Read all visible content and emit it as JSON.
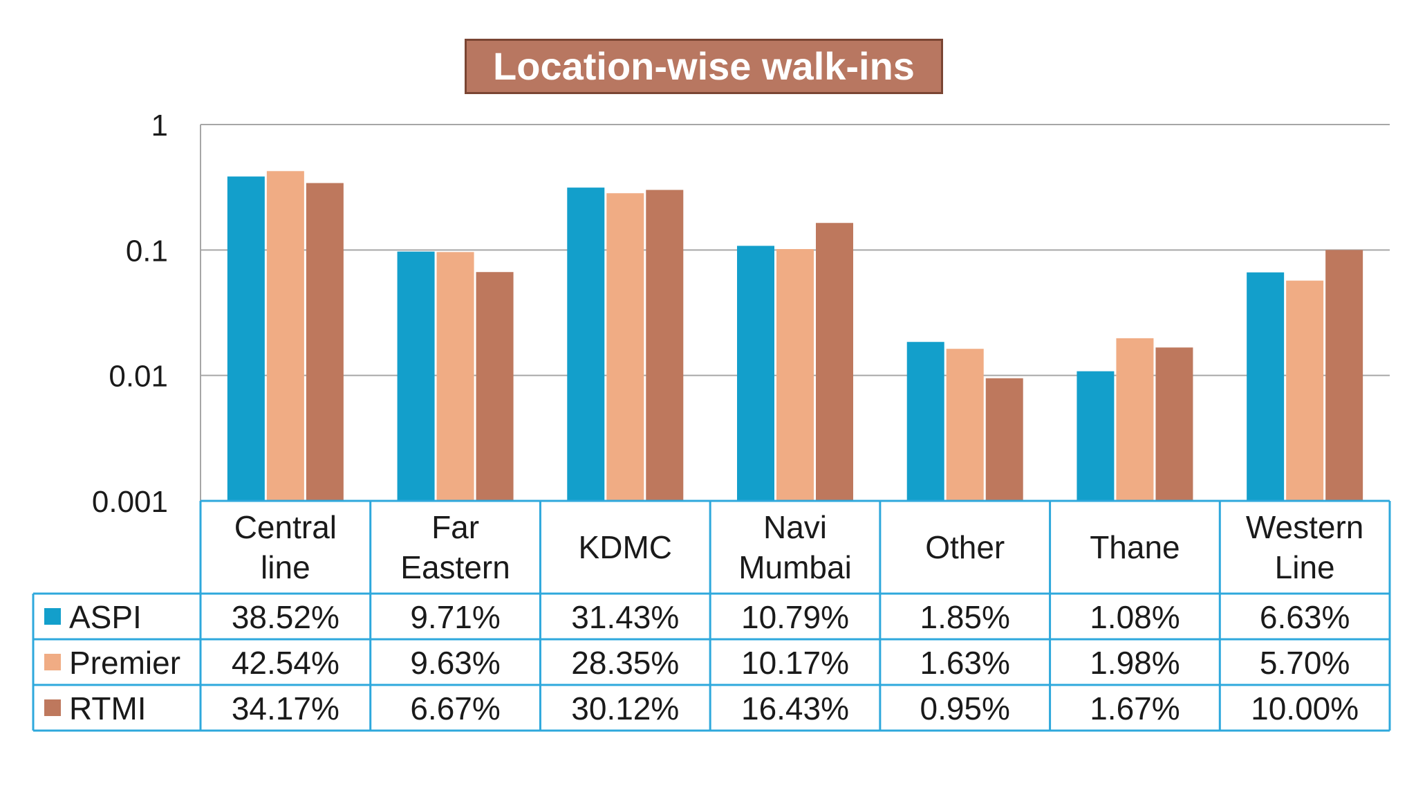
{
  "chart_data": {
    "type": "bar",
    "title": "Location-wise walk-ins",
    "xlabel": "",
    "ylabel": "",
    "yscale": "log",
    "ylim": [
      0.001,
      1
    ],
    "yticks": [
      "1",
      "0.1",
      "0.01",
      "0.001"
    ],
    "grid": true,
    "legend": "data-table",
    "categories": [
      [
        "Central",
        "line"
      ],
      [
        "Far",
        "Eastern"
      ],
      [
        "KDMC"
      ],
      [
        "Navi",
        "Mumbai"
      ],
      [
        "Other"
      ],
      [
        "Thane"
      ],
      [
        "Western",
        "Line"
      ]
    ],
    "series": [
      {
        "name": "ASPI",
        "color": "#139FCB",
        "values": [
          0.3852,
          0.0971,
          0.3143,
          0.1079,
          0.0185,
          0.0108,
          0.0663
        ],
        "labels": [
          "38.52%",
          "9.71%",
          "31.43%",
          "10.79%",
          "1.85%",
          "1.08%",
          "6.63%"
        ]
      },
      {
        "name": "Premier",
        "color": "#F0AC84",
        "values": [
          0.4254,
          0.0963,
          0.2835,
          0.1017,
          0.0163,
          0.0198,
          0.057
        ],
        "labels": [
          "42.54%",
          "9.63%",
          "28.35%",
          "10.17%",
          "1.63%",
          "1.98%",
          "5.70%"
        ]
      },
      {
        "name": "RTMI",
        "color": "#BE785D",
        "values": [
          0.3417,
          0.0667,
          0.3012,
          0.1643,
          0.0095,
          0.0167,
          0.1
        ],
        "labels": [
          "34.17%",
          "6.67%",
          "30.12%",
          "16.43%",
          "0.95%",
          "1.67%",
          "10.00%"
        ]
      }
    ]
  }
}
